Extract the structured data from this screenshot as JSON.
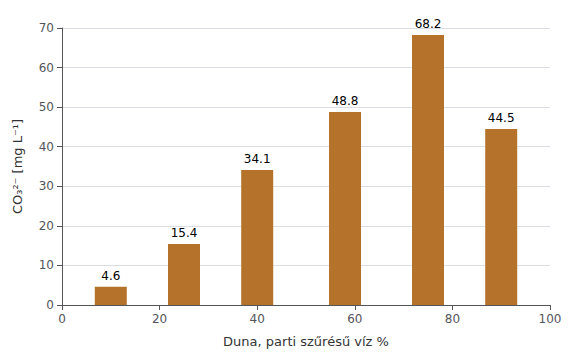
{
  "chart_data": {
    "type": "bar",
    "x": [
      10,
      25,
      40,
      58,
      75,
      90
    ],
    "values": [
      4.6,
      15.4,
      34.1,
      48.8,
      68.2,
      44.5
    ],
    "color": "#b5722a",
    "xlabel": "Duna, parti szűrésű víz %",
    "ylabel": "CO₃²⁻ [mg L⁻¹]",
    "xlim": [
      0,
      100
    ],
    "xticks": [
      0,
      20,
      40,
      60,
      80,
      100
    ],
    "ylim": [
      0,
      70
    ],
    "yticks": [
      0,
      10,
      20,
      30,
      40,
      50,
      60,
      70
    ],
    "grid": true,
    "data_labels": true
  }
}
